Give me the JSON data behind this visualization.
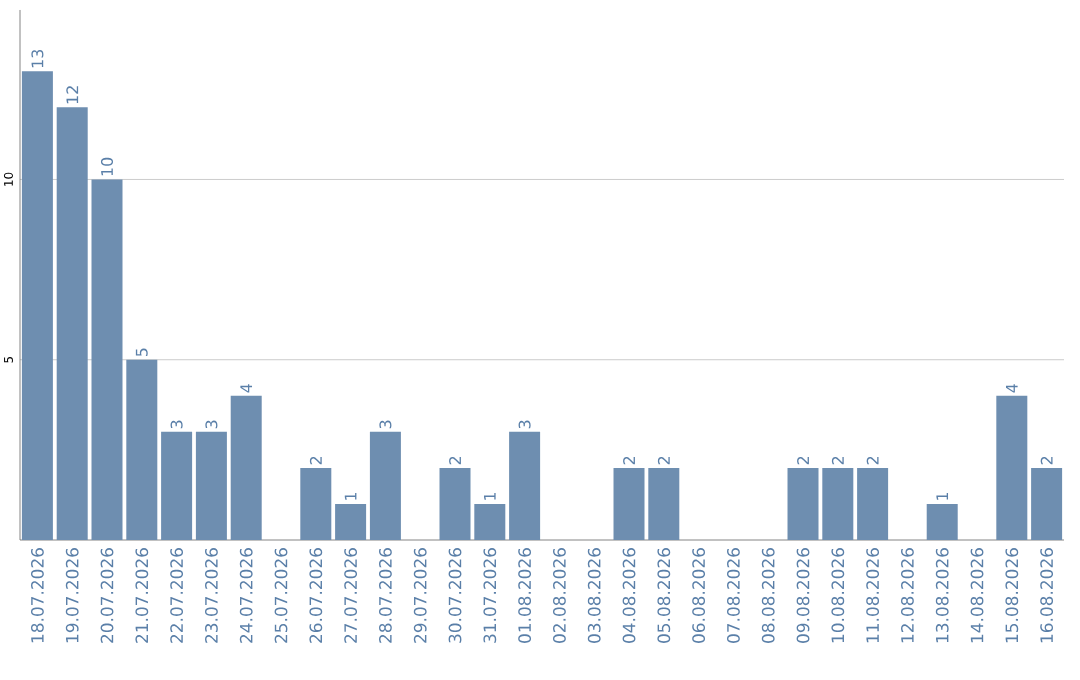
{
  "chart_data": {
    "type": "bar",
    "categories": [
      "18.07.2026",
      "19.07.2026",
      "20.07.2026",
      "21.07.2026",
      "22.07.2026",
      "23.07.2026",
      "24.07.2026",
      "25.07.2026",
      "26.07.2026",
      "27.07.2026",
      "28.07.2026",
      "29.07.2026",
      "30.07.2026",
      "31.07.2026",
      "01.08.2026",
      "02.08.2026",
      "03.08.2026",
      "04.08.2026",
      "05.08.2026",
      "06.08.2026",
      "07.08.2026",
      "08.08.2026",
      "09.08.2026",
      "10.08.2026",
      "11.08.2026",
      "12.08.2026",
      "13.08.2026",
      "14.08.2026",
      "15.08.2026",
      "16.08.2026"
    ],
    "values": [
      13,
      12,
      10,
      5,
      3,
      3,
      4,
      0,
      2,
      1,
      3,
      0,
      2,
      1,
      3,
      0,
      0,
      2,
      2,
      0,
      0,
      0,
      2,
      2,
      2,
      0,
      1,
      0,
      4,
      2
    ],
    "value_labels": [
      "13",
      "12",
      "10",
      "5",
      "3",
      "3",
      "4",
      null,
      "2",
      "1",
      "3",
      null,
      "2",
      "1",
      "3",
      null,
      null,
      "2",
      "2",
      null,
      null,
      null,
      "2",
      "2",
      "2",
      null,
      "1",
      null,
      "4",
      "2"
    ],
    "color": "#6e8eb0",
    "ylim": [
      0,
      14.7
    ],
    "yticks": [
      5,
      10
    ],
    "grid": "y"
  }
}
